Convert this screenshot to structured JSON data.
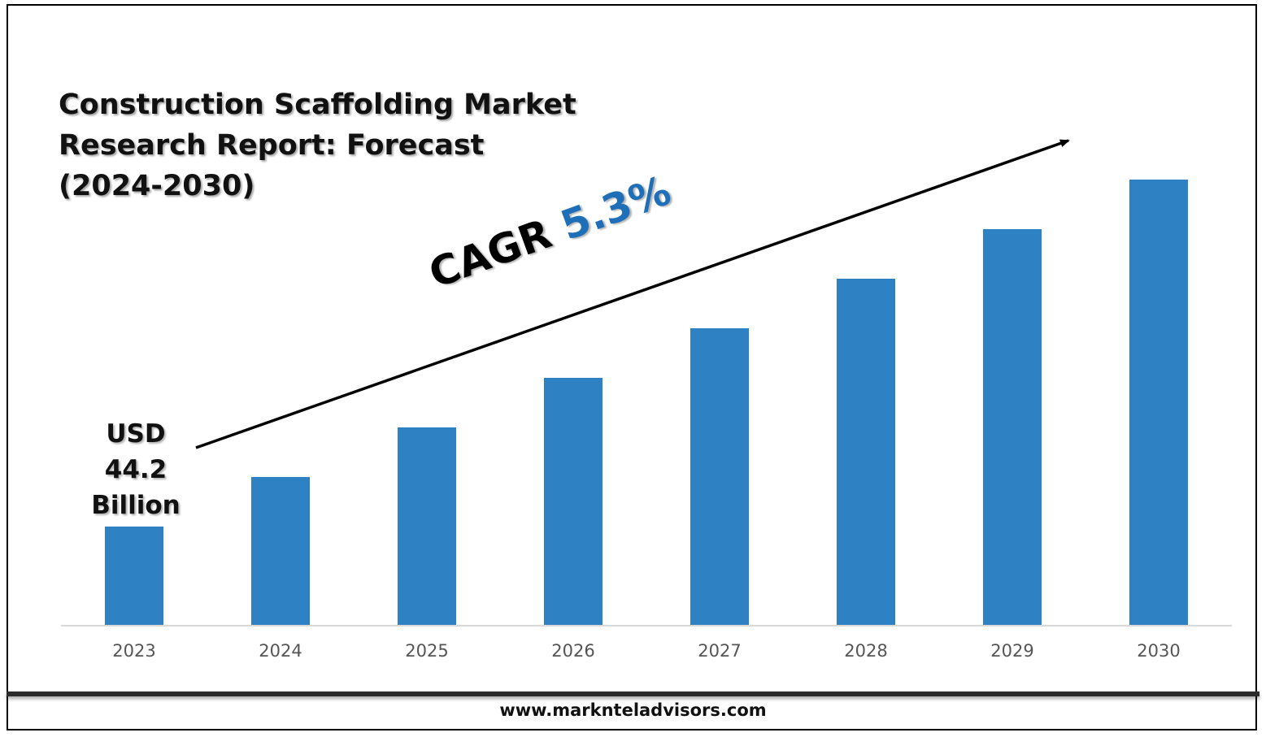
{
  "chart_data": {
    "type": "bar",
    "title": "Construction Scaffolding Market\nResearch Report: Forecast\n(2024-2030)",
    "categories": [
      "2023",
      "2024",
      "2025",
      "2026",
      "2027",
      "2028",
      "2029",
      "2030"
    ],
    "values": [
      1,
      1.5,
      2,
      2.5,
      3,
      3.5,
      4,
      4.5
    ],
    "bar_color": "#2e81c3",
    "ylim": [
      0,
      5
    ],
    "grid": false,
    "annotations": {
      "start_value": [
        "USD",
        "44.2",
        "Billion"
      ],
      "cagr_label": "CAGR",
      "cagr_value": "5.3%",
      "cagr_color": "#1f6fb8"
    }
  },
  "footer": {
    "website": "www.marknteladvisors.com"
  }
}
